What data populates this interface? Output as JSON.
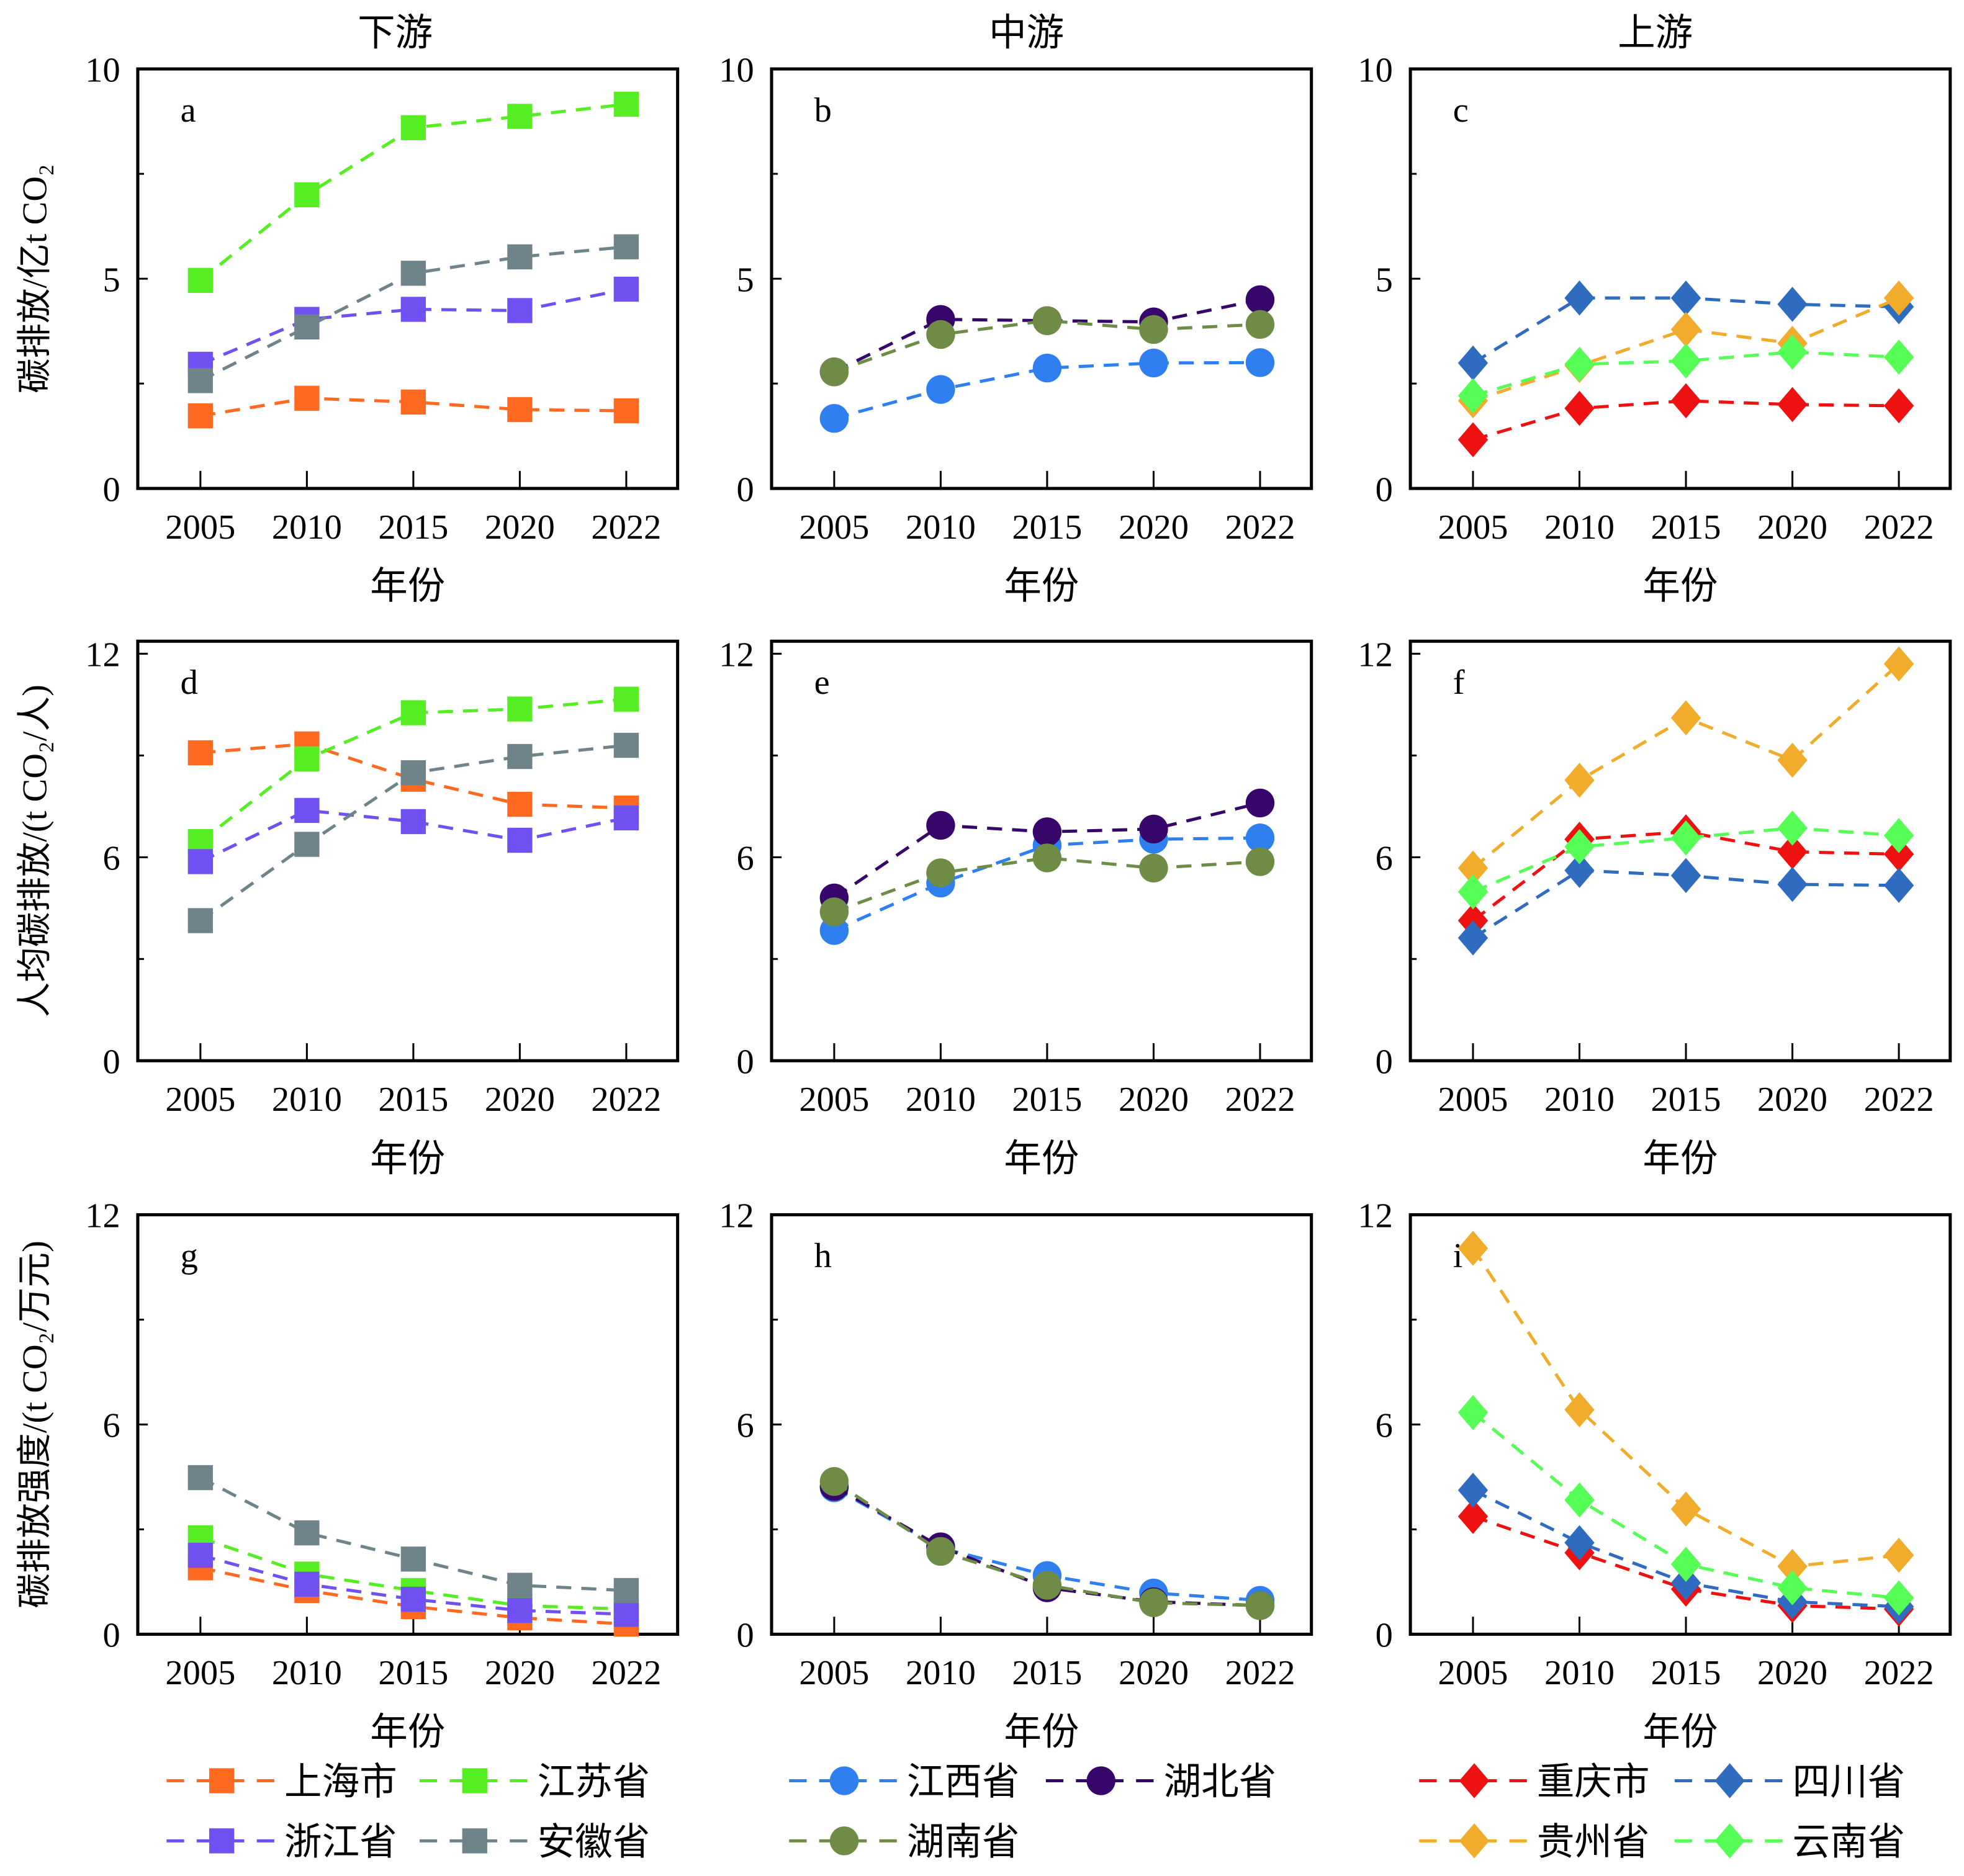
{
  "chart_data": [
    {
      "panel": "a",
      "type": "line",
      "column_title": "下游",
      "ylabel": "碳排放/亿t CO₂",
      "xlabel": "年份",
      "ylim": [
        0,
        10
      ],
      "yticks": [
        0,
        5,
        10
      ],
      "categories": [
        "2005",
        "2010",
        "2015",
        "2020",
        "2022"
      ],
      "series": [
        {
          "name": "上海市",
          "color": "#ff6a20",
          "marker": "square",
          "values": [
            1.73,
            2.15,
            2.06,
            1.88,
            1.85
          ]
        },
        {
          "name": "江苏省",
          "color": "#55ee22",
          "marker": "square",
          "values": [
            4.96,
            7.0,
            8.6,
            8.87,
            9.16
          ]
        },
        {
          "name": "浙江省",
          "color": "#7050f0",
          "marker": "square",
          "values": [
            2.96,
            4.03,
            4.27,
            4.24,
            4.75
          ]
        },
        {
          "name": "安徽省",
          "color": "#6e848a",
          "marker": "square",
          "values": [
            2.57,
            3.85,
            5.13,
            5.52,
            5.76
          ]
        }
      ]
    },
    {
      "panel": "b",
      "type": "line",
      "column_title": "中游",
      "xlabel": "年份",
      "ylim": [
        0,
        10
      ],
      "yticks": [
        0,
        5,
        10
      ],
      "categories": [
        "2005",
        "2010",
        "2015",
        "2020",
        "2022"
      ],
      "series": [
        {
          "name": "江西省",
          "color": "#2f7ff0",
          "marker": "circle",
          "values": [
            1.67,
            2.36,
            2.87,
            2.99,
            3.0
          ]
        },
        {
          "name": "湖北省",
          "color": "#36066a",
          "marker": "circle",
          "values": [
            2.78,
            4.03,
            4.0,
            3.97,
            4.5
          ]
        },
        {
          "name": "湖南省",
          "color": "#6e8c45",
          "marker": "circle",
          "values": [
            2.78,
            3.67,
            4.0,
            3.79,
            3.91
          ]
        }
      ]
    },
    {
      "panel": "c",
      "type": "line",
      "column_title": "上游",
      "xlabel": "年份",
      "ylim": [
        0,
        10
      ],
      "yticks": [
        0,
        5,
        10
      ],
      "categories": [
        "2005",
        "2010",
        "2015",
        "2020",
        "2022"
      ],
      "series": [
        {
          "name": "重庆市",
          "color": "#ee1111",
          "marker": "diamond",
          "values": [
            1.16,
            1.91,
            2.09,
            2.0,
            1.97
          ]
        },
        {
          "name": "四川省",
          "color": "#2f6cc0",
          "marker": "diamond",
          "values": [
            2.99,
            4.54,
            4.54,
            4.39,
            4.33
          ]
        },
        {
          "name": "贵州省",
          "color": "#f0ac2a",
          "marker": "diamond",
          "values": [
            2.09,
            2.93,
            3.79,
            3.46,
            4.54
          ]
        },
        {
          "name": "云南省",
          "color": "#55ff55",
          "marker": "diamond",
          "values": [
            2.21,
            2.96,
            3.04,
            3.25,
            3.13
          ]
        }
      ]
    },
    {
      "panel": "d",
      "type": "line",
      "ylabel": "人均碳排放/(t CO₂/人)",
      "xlabel": "年份",
      "ylim": [
        0,
        12
      ],
      "yticks": [
        0,
        6,
        12
      ],
      "categories": [
        "2005",
        "2010",
        "2015",
        "2020",
        "2022"
      ],
      "series": [
        {
          "name": "上海市",
          "color": "#ff6a20",
          "marker": "square",
          "values": [
            9.08,
            9.34,
            8.3,
            7.56,
            7.45
          ]
        },
        {
          "name": "江苏省",
          "color": "#55ee22",
          "marker": "square",
          "values": [
            6.46,
            8.9,
            10.26,
            10.37,
            10.66
          ]
        },
        {
          "name": "浙江省",
          "color": "#7050f0",
          "marker": "square",
          "values": [
            5.87,
            7.38,
            7.05,
            6.5,
            7.16
          ]
        },
        {
          "name": "安徽省",
          "color": "#6e848a",
          "marker": "square",
          "values": [
            4.13,
            6.38,
            8.49,
            8.97,
            9.3
          ]
        }
      ]
    },
    {
      "panel": "e",
      "type": "line",
      "xlabel": "年份",
      "ylim": [
        0,
        12
      ],
      "yticks": [
        0,
        6,
        12
      ],
      "categories": [
        "2005",
        "2010",
        "2015",
        "2020",
        "2022"
      ],
      "series": [
        {
          "name": "江西省",
          "color": "#2f7ff0",
          "marker": "circle",
          "values": [
            3.84,
            5.24,
            6.35,
            6.53,
            6.57
          ]
        },
        {
          "name": "湖北省",
          "color": "#36066a",
          "marker": "circle",
          "values": [
            4.8,
            6.94,
            6.75,
            6.83,
            7.6
          ]
        },
        {
          "name": "湖南省",
          "color": "#6e8c45",
          "marker": "circle",
          "values": [
            4.39,
            5.54,
            5.98,
            5.68,
            5.87
          ]
        }
      ]
    },
    {
      "panel": "f",
      "type": "line",
      "xlabel": "年份",
      "ylim": [
        0,
        12
      ],
      "yticks": [
        0,
        6,
        12
      ],
      "categories": [
        "2005",
        "2010",
        "2015",
        "2020",
        "2022"
      ],
      "series": [
        {
          "name": "重庆市",
          "color": "#ee1111",
          "marker": "diamond",
          "values": [
            4.13,
            6.53,
            6.75,
            6.16,
            6.09
          ]
        },
        {
          "name": "四川省",
          "color": "#2f6cc0",
          "marker": "diamond",
          "values": [
            3.62,
            5.61,
            5.46,
            5.2,
            5.17
          ]
        },
        {
          "name": "贵州省",
          "color": "#f0ac2a",
          "marker": "diamond",
          "values": [
            5.68,
            8.27,
            10.11,
            8.86,
            11.7
          ]
        },
        {
          "name": "云南省",
          "color": "#55ff55",
          "marker": "diamond",
          "values": [
            4.98,
            6.31,
            6.57,
            6.86,
            6.64
          ]
        }
      ]
    },
    {
      "panel": "g",
      "type": "line",
      "ylabel": "碳排放强度/(t CO₂/万元)",
      "xlabel": "年份",
      "ylim": [
        0,
        12
      ],
      "yticks": [
        0,
        6,
        12
      ],
      "categories": [
        "2005",
        "2010",
        "2015",
        "2020",
        "2022"
      ],
      "series": [
        {
          "name": "上海市",
          "color": "#ff6a20",
          "marker": "square",
          "values": [
            1.9,
            1.25,
            0.79,
            0.47,
            0.29
          ]
        },
        {
          "name": "江苏省",
          "color": "#55ee22",
          "marker": "square",
          "values": [
            2.76,
            1.72,
            1.25,
            0.82,
            0.72
          ]
        },
        {
          "name": "浙江省",
          "color": "#7050f0",
          "marker": "square",
          "values": [
            2.26,
            1.43,
            1.0,
            0.68,
            0.57
          ]
        },
        {
          "name": "安徽省",
          "color": "#6e848a",
          "marker": "square",
          "values": [
            4.48,
            2.9,
            2.15,
            1.4,
            1.25
          ]
        }
      ]
    },
    {
      "panel": "h",
      "type": "line",
      "xlabel": "年份",
      "ylim": [
        0,
        12
      ],
      "yticks": [
        0,
        6,
        12
      ],
      "categories": [
        "2005",
        "2010",
        "2015",
        "2020",
        "2022"
      ],
      "series": [
        {
          "name": "江西省",
          "color": "#2f7ff0",
          "marker": "circle",
          "values": [
            4.19,
            2.47,
            1.68,
            1.18,
            0.97
          ]
        },
        {
          "name": "湖北省",
          "color": "#36066a",
          "marker": "circle",
          "values": [
            4.23,
            2.5,
            1.33,
            0.93,
            0.82
          ]
        },
        {
          "name": "湖南省",
          "color": "#6e8c45",
          "marker": "circle",
          "values": [
            4.37,
            2.37,
            1.4,
            0.9,
            0.82
          ]
        }
      ]
    },
    {
      "panel": "i",
      "type": "line",
      "xlabel": "年份",
      "ylim": [
        0,
        12
      ],
      "yticks": [
        0,
        6,
        12
      ],
      "categories": [
        "2005",
        "2010",
        "2015",
        "2020",
        "2022"
      ],
      "series": [
        {
          "name": "重庆市",
          "color": "#ee1111",
          "marker": "diamond",
          "values": [
            3.37,
            2.33,
            1.29,
            0.82,
            0.72
          ]
        },
        {
          "name": "四川省",
          "color": "#2f6cc0",
          "marker": "diamond",
          "values": [
            4.12,
            2.62,
            1.47,
            0.93,
            0.79
          ]
        },
        {
          "name": "贵州省",
          "color": "#f0ac2a",
          "marker": "diamond",
          "values": [
            11.04,
            6.42,
            3.58,
            1.94,
            2.26
          ]
        },
        {
          "name": "云南省",
          "color": "#55ff55",
          "marker": "diamond",
          "values": [
            6.34,
            3.84,
            2.0,
            1.33,
            1.04
          ]
        }
      ]
    }
  ],
  "legend": {
    "placement": "bottom",
    "groups": [
      [
        {
          "name": "上海市",
          "color": "#ff6a20",
          "marker": "square"
        },
        {
          "name": "江苏省",
          "color": "#55ee22",
          "marker": "square"
        },
        {
          "name": "浙江省",
          "color": "#7050f0",
          "marker": "square"
        },
        {
          "name": "安徽省",
          "color": "#6e848a",
          "marker": "square"
        }
      ],
      [
        {
          "name": "江西省",
          "color": "#2f7ff0",
          "marker": "circle"
        },
        {
          "name": "湖北省",
          "color": "#36066a",
          "marker": "circle"
        },
        {
          "name": "湖南省",
          "color": "#6e8c45",
          "marker": "circle"
        }
      ],
      [
        {
          "name": "重庆市",
          "color": "#ee1111",
          "marker": "diamond"
        },
        {
          "name": "四川省",
          "color": "#2f6cc0",
          "marker": "diamond"
        },
        {
          "name": "贵州省",
          "color": "#f0ac2a",
          "marker": "diamond"
        },
        {
          "name": "云南省",
          "color": "#55ff55",
          "marker": "diamond"
        }
      ]
    ]
  }
}
